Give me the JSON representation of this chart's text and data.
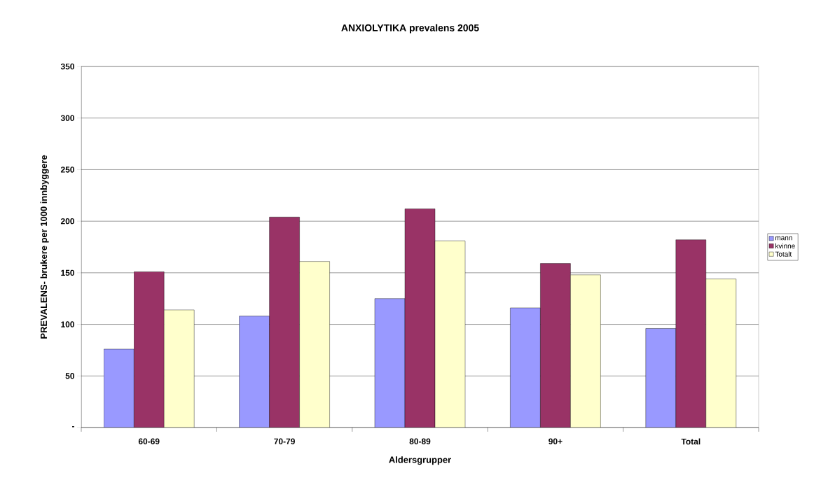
{
  "chart_data": {
    "type": "bar",
    "title": "ANXIOLYTIKA prevalens 2005",
    "xlabel": "Aldersgrupper",
    "ylabel": "PREVALENS- brukere per 1000 innbyggere",
    "categories": [
      "60-69",
      "70-79",
      "80-89",
      "90+",
      "Total"
    ],
    "series": [
      {
        "name": "mann",
        "color": "#9999ff",
        "values": [
          76,
          108,
          125,
          116,
          96
        ]
      },
      {
        "name": "kvinne",
        "color": "#993366",
        "values": [
          151,
          204,
          212,
          159,
          182
        ]
      },
      {
        "name": "Totalt",
        "color": "#ffffcc",
        "values": [
          114,
          161,
          181,
          148,
          144
        ]
      }
    ],
    "ylim": [
      0,
      350
    ],
    "yticks": [
      {
        "value": 0,
        "label": "-"
      },
      50,
      100,
      150,
      200,
      250,
      300,
      350
    ],
    "grid": "y",
    "legend": "right"
  }
}
